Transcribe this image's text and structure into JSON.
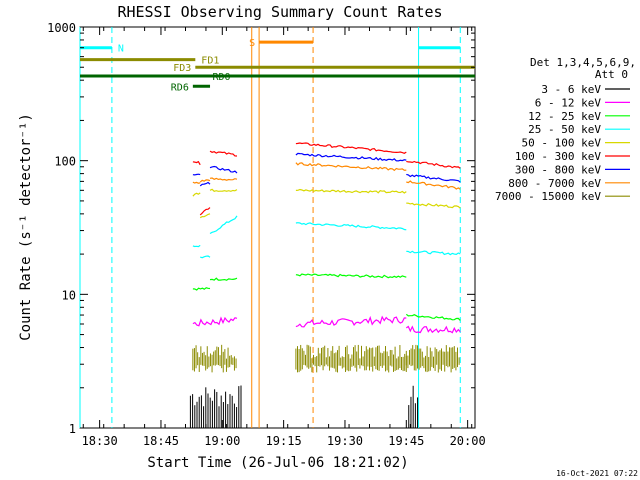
{
  "chart_data": {
    "type": "line",
    "title": "RHESSI Observing Summary Count Rates",
    "xlabel": "Start Time (26-Jul-06 18:21:02)",
    "ylabel": "Count Rate (s⁻¹ detector⁻¹)",
    "yscale": "log",
    "xlim_minutes": [
      18.42,
      20.03
    ],
    "ylim": [
      1,
      1000
    ],
    "x_ticks": [
      "18:30",
      "18:45",
      "19:00",
      "19:15",
      "19:30",
      "19:45",
      "20:00"
    ],
    "y_ticks": [
      "1",
      "10",
      "100",
      "1000"
    ],
    "legend_title": "Det 1,3,4,5,6,9,",
    "legend_subtitle": "Att 0",
    "timestamp": "16-Oct-2021 07:22",
    "series": [
      {
        "name": "3 - 6 keV",
        "color": "#000000",
        "segments": [
          [
            18.87,
            19.08,
            1.5,
            2.0
          ],
          [
            19.76,
            19.8,
            1.3,
            1.5
          ]
        ]
      },
      {
        "name": "6 - 12 keV",
        "color": "#ff00ff",
        "segments": [
          [
            18.88,
            19.06,
            6.0,
            6.5
          ],
          [
            19.3,
            19.75,
            6.0,
            6.5
          ],
          [
            19.75,
            19.97,
            5.5,
            5.5
          ]
        ]
      },
      {
        "name": "12 - 25 keV",
        "color": "#00ff00",
        "segments": [
          [
            18.88,
            18.95,
            11,
            11
          ],
          [
            18.95,
            19.06,
            13,
            13
          ],
          [
            19.3,
            19.75,
            14,
            13.5
          ],
          [
            19.75,
            19.97,
            7,
            6.5
          ]
        ]
      },
      {
        "name": "25 - 50 keV",
        "color": "#00ffff",
        "segments": [
          [
            18.88,
            18.91,
            23,
            23
          ],
          [
            18.91,
            18.95,
            19,
            19
          ],
          [
            18.95,
            19.06,
            28,
            38
          ],
          [
            19.3,
            19.75,
            34,
            31
          ],
          [
            19.75,
            19.97,
            21,
            20
          ]
        ]
      },
      {
        "name": "50 - 100 keV",
        "color": "#d8d800",
        "segments": [
          [
            18.88,
            18.91,
            55,
            58
          ],
          [
            18.91,
            18.95,
            38,
            40
          ],
          [
            18.95,
            19.06,
            60,
            60
          ],
          [
            19.3,
            19.75,
            60,
            58
          ],
          [
            19.75,
            19.97,
            48,
            45
          ]
        ]
      },
      {
        "name": "100 - 300 keV",
        "color": "#ff0000",
        "segments": [
          [
            18.88,
            18.91,
            100,
            95
          ],
          [
            18.91,
            18.95,
            40,
            45
          ],
          [
            18.95,
            19.06,
            118,
            110
          ],
          [
            19.3,
            19.75,
            135,
            115
          ],
          [
            19.75,
            19.97,
            100,
            88
          ]
        ]
      },
      {
        "name": "300 - 800 keV",
        "color": "#0000ff",
        "segments": [
          [
            18.88,
            18.91,
            78,
            78
          ],
          [
            18.91,
            18.95,
            65,
            68
          ],
          [
            18.95,
            19.06,
            90,
            82
          ],
          [
            19.3,
            19.75,
            112,
            100
          ],
          [
            19.75,
            19.97,
            78,
            70
          ]
        ]
      },
      {
        "name": "800 - 7000 keV",
        "color": "#ff8800",
        "segments": [
          [
            18.88,
            18.91,
            68,
            68
          ],
          [
            18.91,
            18.95,
            70,
            72
          ],
          [
            18.95,
            19.06,
            73,
            72
          ],
          [
            19.3,
            19.75,
            95,
            85
          ],
          [
            19.75,
            19.97,
            70,
            62
          ]
        ]
      },
      {
        "name": "7000 - 15000 keV",
        "color": "#8b8b00",
        "segments": [
          [
            18.88,
            19.06,
            3.0,
            3.8
          ],
          [
            19.3,
            19.75,
            3.0,
            4.0
          ],
          [
            19.75,
            19.97,
            3.0,
            3.5
          ]
        ]
      }
    ],
    "markers": [
      {
        "label": "N",
        "color": "#00ffff",
        "x_start": 18.42,
        "x_end": 18.55,
        "y": 700,
        "dashed_at": 18.55
      },
      {
        "label": "",
        "color": "#00ffff",
        "x_start": 19.8,
        "x_end": 19.97,
        "y": 700,
        "dashed_at": 19.97
      },
      {
        "label": "S",
        "color": "#ff8800",
        "x_start": 19.15,
        "x_end": 19.37,
        "y": 770,
        "dashed_at": 19.37
      },
      {
        "label": "FD1",
        "color": "#8b8b00",
        "x_start": 18.42,
        "x_end": 18.89,
        "y": 570
      },
      {
        "label": "FD3",
        "color": "#8b8b00",
        "x_start": 18.89,
        "x_end": 20.03,
        "y": 500
      },
      {
        "label": "RD0",
        "color": "#006400",
        "x_start": 18.42,
        "x_end": 20.03,
        "y": 430
      },
      {
        "label": "RD6",
        "color": "#006400",
        "x_start": 18.88,
        "x_end": 18.95,
        "y": 360
      }
    ],
    "vertical_lines": [
      {
        "x": 18.42,
        "color": "#00ffff",
        "style": "solid"
      },
      {
        "x": 18.55,
        "color": "#00ffff",
        "style": "dashed"
      },
      {
        "x": 19.12,
        "color": "#ff8800",
        "style": "solid"
      },
      {
        "x": 19.15,
        "color": "#ff8800",
        "style": "solid"
      },
      {
        "x": 19.37,
        "color": "#ff8800",
        "style": "dashed"
      },
      {
        "x": 19.8,
        "color": "#00ffff",
        "style": "solid"
      },
      {
        "x": 19.97,
        "color": "#00ffff",
        "style": "dashed"
      }
    ]
  }
}
